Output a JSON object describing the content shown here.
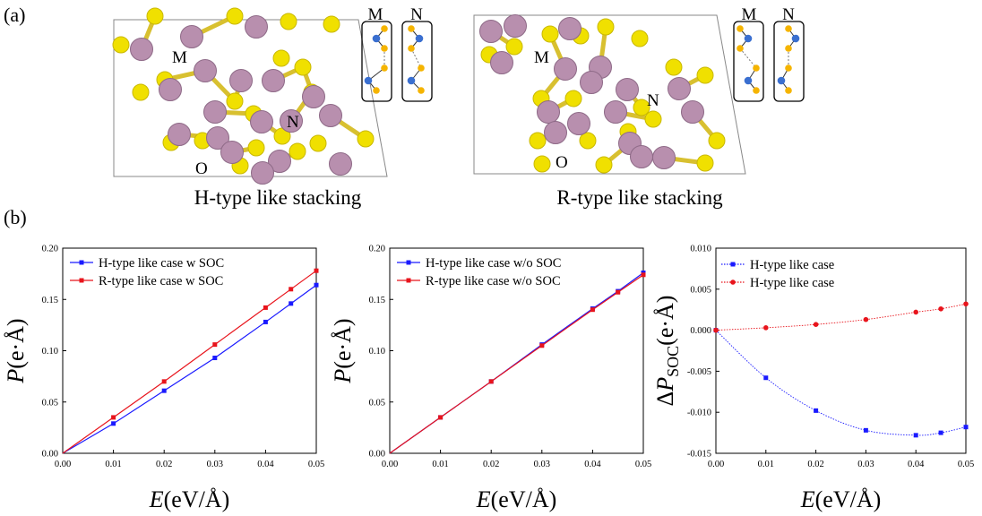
{
  "panel_labels": {
    "a": "(a)",
    "b": "(b)"
  },
  "structures": [
    {
      "caption": "H-type like stacking",
      "site_labels": {
        "M": "M",
        "N": "N",
        "O": "O"
      },
      "inset_headers": [
        "M",
        "N"
      ]
    },
    {
      "caption": "R-type like stacking",
      "site_labels": {
        "M": "M",
        "N": "N",
        "O": "O"
      },
      "inset_headers": [
        "M",
        "N"
      ]
    }
  ],
  "colors": {
    "blue": "#1a1aff",
    "red": "#e8141c",
    "metal_atom": "#b88fae",
    "chalcogen_atom": "#f0e000",
    "inset_blue": "#3a6fd0",
    "inset_yellow": "#f5b400"
  },
  "chart_data": [
    {
      "type": "line",
      "x": [
        0.0,
        0.01,
        0.02,
        0.03,
        0.04,
        0.045,
        0.05
      ],
      "series": [
        {
          "name": "H-type like case w SOC",
          "color": "#1a1aff",
          "marker": "square",
          "values": [
            0.0,
            0.029,
            0.061,
            0.093,
            0.128,
            0.146,
            0.164
          ]
        },
        {
          "name": "R-type like case w SOC",
          "color": "#e8141c",
          "marker": "square",
          "values": [
            0.0,
            0.035,
            0.07,
            0.106,
            0.142,
            0.16,
            0.178
          ]
        }
      ],
      "xlabel_italic": "E",
      "xlabel_units": "(eV/Å)",
      "ylabel_italic": "P",
      "ylabel_units": "(e·Å)",
      "xlim": [
        0,
        0.05
      ],
      "ylim": [
        0,
        0.2
      ],
      "xticks": [
        "0.00",
        "0.01",
        "0.02",
        "0.03",
        "0.04",
        "0.05"
      ],
      "yticks": [
        "0.00",
        "0.05",
        "0.10",
        "0.15",
        "0.20"
      ],
      "legend_position": "top-left"
    },
    {
      "type": "line",
      "x": [
        0.0,
        0.01,
        0.02,
        0.03,
        0.04,
        0.045,
        0.05
      ],
      "series": [
        {
          "name": "H-type like case w/o SOC",
          "color": "#1a1aff",
          "marker": "square",
          "values": [
            0.0,
            0.035,
            0.07,
            0.106,
            0.141,
            0.158,
            0.176
          ]
        },
        {
          "name": "R-type like case w/o SOC",
          "color": "#e8141c",
          "marker": "square",
          "values": [
            0.0,
            0.035,
            0.07,
            0.105,
            0.14,
            0.157,
            0.174
          ]
        }
      ],
      "xlabel_italic": "E",
      "xlabel_units": "(eV/Å)",
      "ylabel_italic": "P",
      "ylabel_units": "(e·Å)",
      "xlim": [
        0,
        0.05
      ],
      "ylim": [
        0,
        0.2
      ],
      "xticks": [
        "0.00",
        "0.01",
        "0.02",
        "0.03",
        "0.04",
        "0.05"
      ],
      "yticks": [
        "0.00",
        "0.05",
        "0.10",
        "0.15",
        "0.20"
      ],
      "legend_position": "top-left"
    },
    {
      "type": "line",
      "x": [
        0.0,
        0.01,
        0.02,
        0.03,
        0.04,
        0.045,
        0.05
      ],
      "series": [
        {
          "name": "H-type like case",
          "color": "#1a1aff",
          "marker": "square",
          "style": "dotted",
          "values": [
            0.0,
            -0.0058,
            -0.0098,
            -0.0122,
            -0.0128,
            -0.0125,
            -0.0118
          ]
        },
        {
          "name": "H-type like case",
          "color": "#e8141c",
          "marker": "circle",
          "style": "dotted",
          "values": [
            0.0,
            0.0003,
            0.0007,
            0.0013,
            0.0022,
            0.0026,
            0.0032
          ]
        }
      ],
      "xlabel_italic": "E",
      "xlabel_units": "(eV/Å)",
      "ylabel_prefix": "Δ",
      "ylabel_italic": "P",
      "ylabel_sub": "SOC",
      "ylabel_units": "(e·Å)",
      "xlim": [
        0,
        0.05
      ],
      "ylim": [
        -0.015,
        0.01
      ],
      "xticks": [
        "0.00",
        "0.01",
        "0.02",
        "0.03",
        "0.04",
        "0.05"
      ],
      "yticks": [
        "-0.015",
        "-0.010",
        "-0.005",
        "0.000",
        "0.005",
        "0.010"
      ],
      "legend_position": "top-left"
    }
  ]
}
